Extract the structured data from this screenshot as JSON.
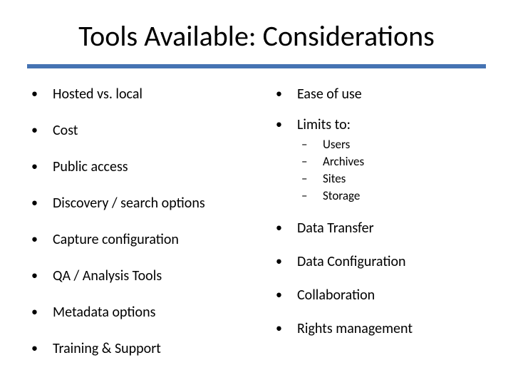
{
  "title": "Tools Available: Considerations",
  "accent_color": "#4573b3",
  "background_color": "#ffffff",
  "text_color": "#000000",
  "title_fontsize": 40,
  "body_fontsize": 20,
  "sub_fontsize": 17,
  "left": {
    "items": [
      "Hosted vs. local",
      "Cost",
      "Public access",
      "Discovery / search options",
      "Capture configuration",
      "QA / Analysis Tools",
      "Metadata options",
      "Training & Support"
    ]
  },
  "right": {
    "items": [
      {
        "label": "Ease of use"
      },
      {
        "label": "Limits to:",
        "sub": [
          "Users",
          "Archives",
          "Sites",
          "Storage"
        ]
      },
      {
        "label": "Data Transfer"
      },
      {
        "label": "Data Configuration"
      },
      {
        "label": "Collaboration"
      },
      {
        "label": "Rights management"
      }
    ]
  }
}
